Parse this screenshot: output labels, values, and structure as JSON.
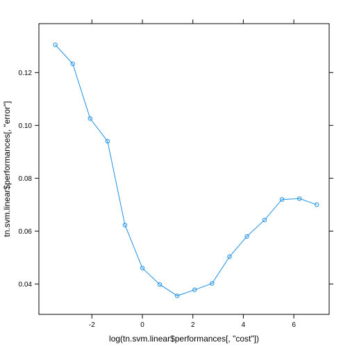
{
  "chart_data": {
    "type": "line",
    "xlabel": "log(tn.svm.linear$performances[, \"cost\"])",
    "ylabel": "tn.svm.linear$performances[, \"error\"]",
    "xlim": [
      -4.1,
      7.4
    ],
    "ylim": [
      0.0285,
      0.1385
    ],
    "x_ticks": [
      -2,
      0,
      2,
      4,
      6
    ],
    "x_tick_labels": [
      "-2",
      "0",
      "2",
      "4",
      "6"
    ],
    "y_ticks": [
      0.04,
      0.06,
      0.08,
      0.1,
      0.12
    ],
    "y_tick_labels": [
      "0.04",
      "0.06",
      "0.08",
      "0.10",
      "0.12"
    ],
    "grid": false,
    "series": [
      {
        "color": "#1e90e6",
        "markers": "open-circle",
        "x": [
          -3.45,
          -2.76,
          -2.07,
          -1.38,
          -0.69,
          0.0,
          0.69,
          1.38,
          2.07,
          2.76,
          3.45,
          4.14,
          4.84,
          5.53,
          6.22,
          6.91
        ],
        "y": [
          0.1305,
          0.1233,
          0.1026,
          0.094,
          0.0623,
          0.046,
          0.0398,
          0.0355,
          0.0378,
          0.0402,
          0.0503,
          0.058,
          0.0642,
          0.072,
          0.0723,
          0.07
        ]
      }
    ]
  }
}
